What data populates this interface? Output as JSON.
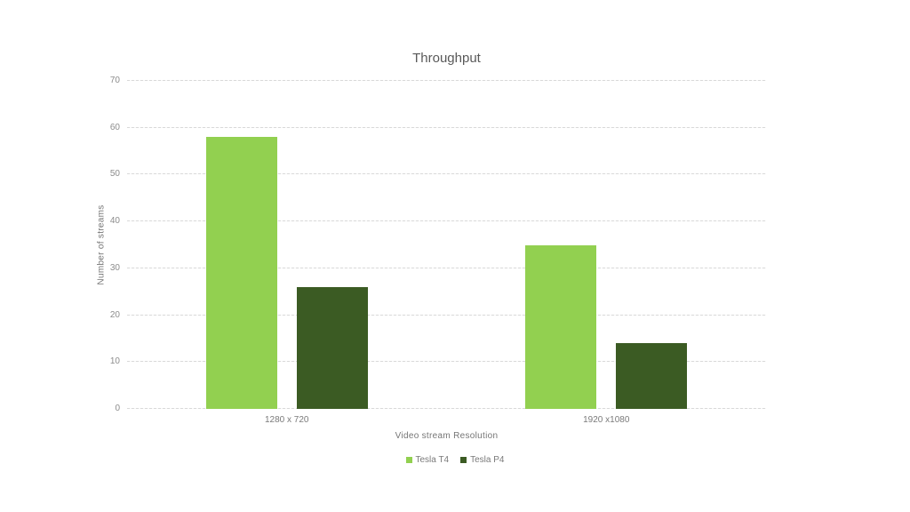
{
  "chart_data": {
    "type": "bar",
    "title": "Throughput",
    "xlabel": "Video stream Resolution",
    "ylabel": "Number of streams",
    "categories": [
      "1280 x 720",
      "1920 x1080"
    ],
    "series": [
      {
        "name": "Tesla T4",
        "color": "#92D050",
        "values": [
          58,
          35
        ]
      },
      {
        "name": "Tesla P4",
        "color": "#3B5B23",
        "values": [
          26,
          14
        ]
      }
    ],
    "ylim": [
      0,
      70
    ],
    "yticks": [
      0,
      10,
      20,
      30,
      40,
      50,
      60,
      70
    ],
    "grid": true,
    "gridline_color": "#D9D9D9",
    "legend_position": "bottom",
    "title_color": "#595959",
    "axis_text_color": "#7A7A7A"
  }
}
